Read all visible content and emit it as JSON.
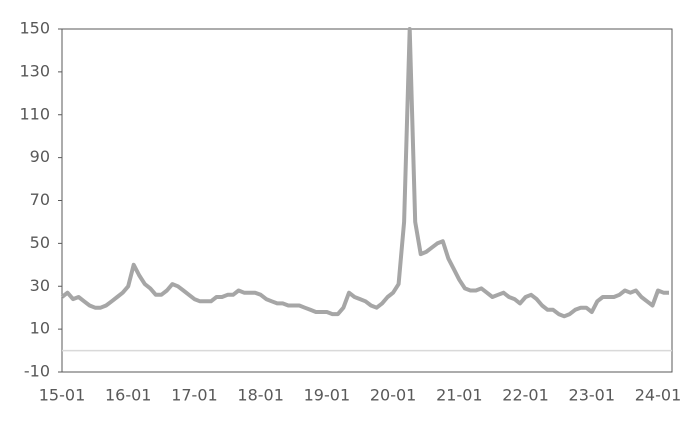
{
  "chart_data": {
    "type": "line",
    "categories": [
      "15-01",
      null,
      null,
      null,
      null,
      null,
      null,
      null,
      null,
      null,
      null,
      null,
      "16-01",
      null,
      null,
      null,
      null,
      null,
      null,
      null,
      null,
      null,
      null,
      null,
      "17-01",
      null,
      null,
      null,
      null,
      null,
      null,
      null,
      null,
      null,
      null,
      null,
      "18-01",
      null,
      null,
      null,
      null,
      null,
      null,
      null,
      null,
      null,
      null,
      null,
      "19-01",
      null,
      null,
      null,
      null,
      null,
      null,
      null,
      null,
      null,
      null,
      null,
      "20-01",
      null,
      null,
      null,
      null,
      null,
      null,
      null,
      null,
      null,
      null,
      null,
      "21-01",
      null,
      null,
      null,
      null,
      null,
      null,
      null,
      null,
      null,
      null,
      null,
      "22-01",
      null,
      null,
      null,
      null,
      null,
      null,
      null,
      null,
      null,
      null,
      null,
      "23-01",
      null,
      null,
      null,
      null,
      null,
      null,
      null,
      null,
      null,
      null,
      null,
      "24-01",
      null,
      null
    ],
    "series": [
      {
        "color": "#a6a6a6",
        "values": [
          25,
          27,
          24,
          25,
          23,
          21,
          20,
          20,
          21,
          23,
          25,
          27,
          30,
          40,
          35,
          31,
          29,
          26,
          26,
          28,
          31,
          30,
          28,
          26,
          24,
          23,
          23,
          23,
          25,
          25,
          26,
          26,
          28,
          27,
          27,
          27,
          26,
          24,
          23,
          22,
          22,
          21,
          21,
          21,
          20,
          19,
          18,
          18,
          18,
          17,
          17,
          20,
          27,
          25,
          24,
          23,
          21,
          20,
          22,
          25,
          27,
          31,
          60,
          150,
          60,
          45,
          46,
          48,
          50,
          51,
          43,
          38,
          33,
          29,
          28,
          28,
          29,
          27,
          25,
          26,
          27,
          25,
          24,
          22,
          25,
          26,
          24,
          21,
          19,
          19,
          17,
          16,
          17,
          19,
          20,
          20,
          18,
          23,
          25,
          25,
          25,
          26,
          28,
          27,
          28,
          25,
          23,
          21,
          28,
          27,
          27
        ]
      }
    ],
    "ylim": [
      -10,
      150
    ],
    "yticks": [
      -10,
      10,
      30,
      50,
      70,
      90,
      110,
      130,
      150
    ]
  }
}
